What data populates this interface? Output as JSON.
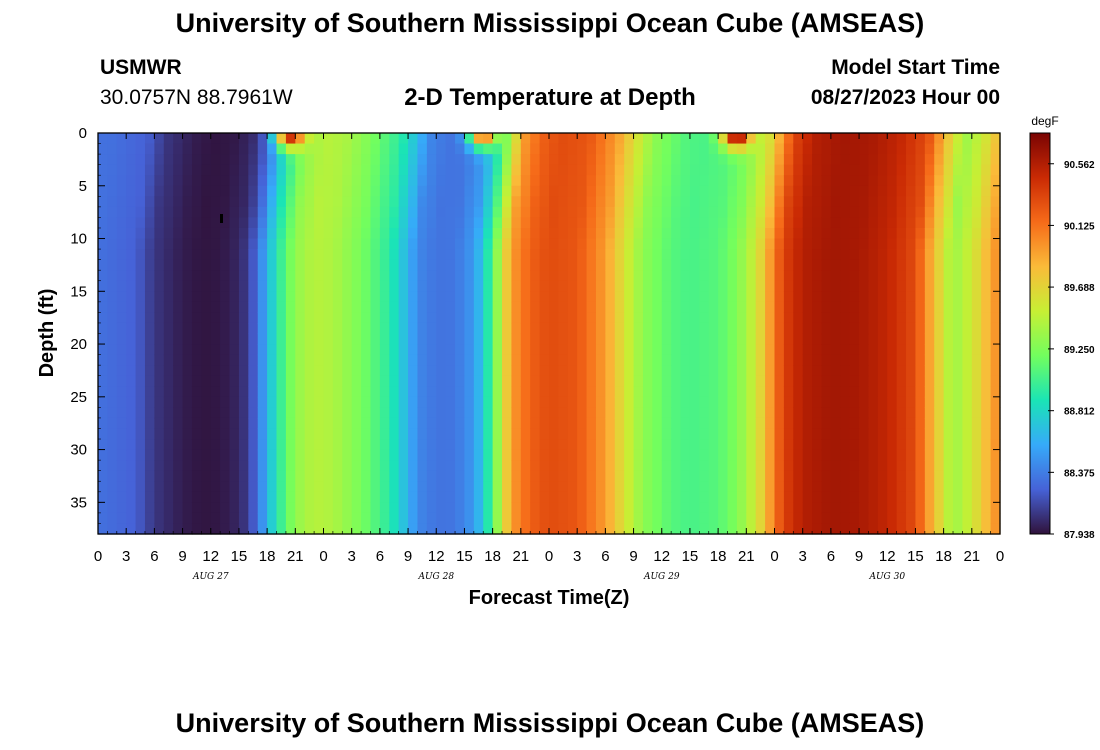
{
  "header": {
    "title": "University of Southern Mississippi Ocean Cube (AMSEAS)",
    "station": "USMWR",
    "coords": "30.0757N  88.7961W",
    "subtitle": "2-D Temperature at Depth",
    "start_label": "Model Start Time",
    "start_value": "08/27/2023 Hour 00"
  },
  "footer": {
    "title": "University of Southern Mississippi Ocean Cube (AMSEAS)"
  },
  "chart_data": {
    "type": "heatmap",
    "xlabel": "Forecast Time(Z)",
    "ylabel": "Depth (ft)",
    "x_ticks": [
      "0",
      "3",
      "6",
      "9",
      "12",
      "15",
      "18",
      "21",
      "0",
      "3",
      "6",
      "9",
      "12",
      "15",
      "18",
      "21",
      "0",
      "3",
      "6",
      "9",
      "12",
      "15",
      "18",
      "21",
      "0",
      "3",
      "6",
      "9",
      "12",
      "15",
      "18",
      "21",
      "0"
    ],
    "x_range_hours": [
      0,
      96
    ],
    "day_labels": [
      {
        "label": "AUG 27",
        "hour": 12
      },
      {
        "label": "AUG 28",
        "hour": 36
      },
      {
        "label": "AUG 29",
        "hour": 60
      },
      {
        "label": "AUG 30",
        "hour": 84
      }
    ],
    "y_ticks": [
      0,
      5,
      10,
      15,
      20,
      25,
      30,
      35
    ],
    "ylim": [
      0,
      38
    ],
    "y_inverted": true,
    "colorbar": {
      "unit": "degF",
      "min": 87.938,
      "max": 90.78,
      "ticks": [
        "90.562",
        "90.125",
        "89.688",
        "89.250",
        "88.812",
        "88.375",
        "87.938"
      ],
      "colors": [
        "#30123b",
        "#4662d7",
        "#36aaf9",
        "#1ae4b6",
        "#72fe5e",
        "#c7ef34",
        "#fabb39",
        "#f66b19",
        "#ca2a04",
        "#7a0403"
      ]
    },
    "time_profile_hours": [
      0,
      4,
      6,
      9,
      11,
      13,
      15,
      16,
      17,
      18,
      19,
      20,
      21,
      23,
      25,
      28,
      31,
      33,
      34,
      36,
      38,
      40,
      41,
      42,
      43,
      44,
      46,
      48,
      51,
      54,
      56,
      58,
      61,
      63,
      66,
      68,
      70,
      71,
      72,
      73,
      75,
      78,
      81,
      84,
      87,
      88,
      89,
      91,
      93,
      95,
      96
    ],
    "time_profile_degF": [
      88.32,
      88.25,
      88.08,
      87.98,
      87.95,
      87.96,
      88.02,
      88.12,
      88.32,
      88.62,
      88.9,
      89.12,
      89.32,
      89.46,
      89.42,
      89.22,
      88.95,
      88.62,
      88.42,
      88.33,
      88.34,
      88.5,
      88.75,
      89.1,
      89.55,
      89.95,
      90.2,
      90.3,
      90.25,
      89.95,
      89.6,
      89.3,
      89.1,
      89.05,
      89.1,
      89.25,
      89.55,
      89.8,
      90.1,
      90.35,
      90.55,
      90.62,
      90.6,
      90.5,
      90.3,
      90.05,
      89.8,
      89.35,
      89.55,
      89.9,
      90.05
    ],
    "surface_anomalies": [
      {
        "hour": 20.5,
        "depth_ft": 0,
        "degF": 90.6
      },
      {
        "hour": 41,
        "depth_ft": 0,
        "degF": 90.3
      },
      {
        "hour": 68,
        "depth_ft": 0,
        "degF": 90.8
      }
    ]
  }
}
